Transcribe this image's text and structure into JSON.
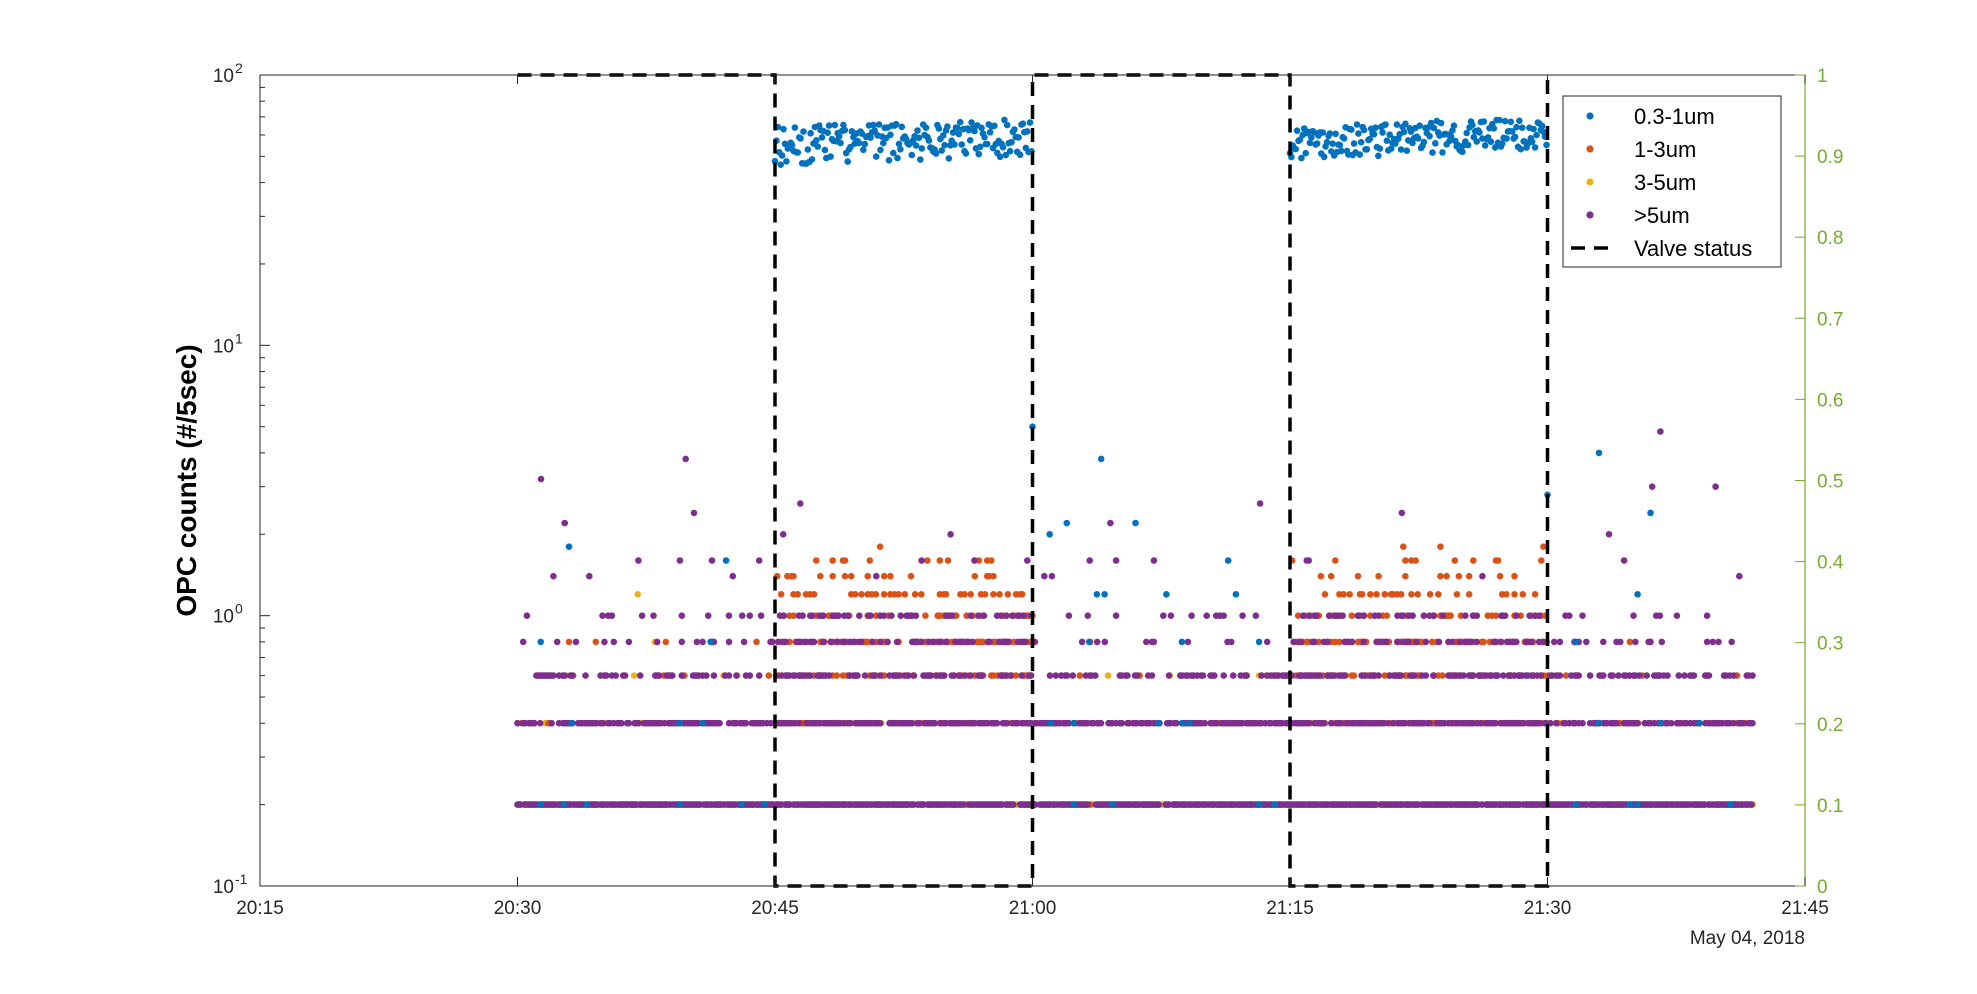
{
  "chart_data": {
    "type": "scatter",
    "title": "",
    "xlabel": "",
    "ylabel": "OPC counts (#/5sec)",
    "x_axis": {
      "type": "time",
      "range": [
        "20:15",
        "21:45"
      ],
      "ticks": [
        "20:15",
        "20:30",
        "20:45",
        "21:00",
        "21:15",
        "21:30",
        "21:45"
      ],
      "date_label": "May 04, 2018"
    },
    "y_axis_left": {
      "scale": "log",
      "range": [
        0.1,
        100
      ],
      "ticks": [
        {
          "value": 0.1,
          "base": "10",
          "exp": "-1"
        },
        {
          "value": 1,
          "base": "10",
          "exp": "0"
        },
        {
          "value": 10,
          "base": "10",
          "exp": "1"
        },
        {
          "value": 100,
          "base": "10",
          "exp": "2"
        }
      ]
    },
    "y_axis_right": {
      "scale": "linear",
      "range": [
        0,
        1
      ],
      "ticks": [
        "0",
        "0.1",
        "0.2",
        "0.3",
        "0.4",
        "0.5",
        "0.6",
        "0.7",
        "0.8",
        "0.9",
        "1"
      ],
      "color": "#77AC30"
    },
    "grid": false,
    "legend_position": "top-right",
    "series": [
      {
        "name": "0.3-1um",
        "marker": "dot",
        "color": "#0072BD",
        "high_count_windows": [
          {
            "start": "20:45",
            "end": "21:00",
            "approx_range": [
              45,
              70
            ]
          },
          {
            "start": "21:15",
            "end": "21:30",
            "approx_range": [
              48,
              70
            ]
          }
        ],
        "sparse_values": [
          0.2,
          0.4,
          0.8,
          1.0,
          1.2,
          1.4,
          1.6,
          1.8,
          2.2,
          2.8,
          3.8,
          4.0,
          5.0
        ],
        "notable_points": [
          {
            "x": "21:00",
            "y": 5.0
          },
          {
            "x": "21:04",
            "y": 3.8
          },
          {
            "x": "21:01",
            "y": 2.0
          },
          {
            "x": "21:02",
            "y": 2.2
          },
          {
            "x": "21:06",
            "y": 2.2
          },
          {
            "x": "21:30",
            "y": 2.8
          },
          {
            "x": "21:33",
            "y": 4.0
          },
          {
            "x": "21:36",
            "y": 2.4
          },
          {
            "x": "20:33",
            "y": 1.8
          }
        ]
      },
      {
        "name": "1-3um",
        "marker": "dot",
        "color": "#D95319",
        "levels": [
          0.2,
          0.4,
          0.6,
          0.8,
          1.0,
          1.2,
          1.4,
          1.6,
          1.8
        ],
        "dense_windows": [
          {
            "start": "20:45",
            "end": "21:00"
          },
          {
            "start": "21:15",
            "end": "21:30"
          }
        ]
      },
      {
        "name": "3-5um",
        "marker": "dot",
        "color": "#EDB120",
        "levels": [
          0.2,
          0.4,
          0.6,
          0.8,
          1.2
        ]
      },
      {
        "name": ">5um",
        "marker": "dot",
        "color": "#7E2F8E",
        "levels": [
          0.2,
          0.4,
          0.6,
          0.8,
          1.0,
          1.4,
          1.6
        ],
        "notable_points": [
          {
            "x": "20:31",
            "y": 3.2
          },
          {
            "x": "20:32",
            "y": 2.2
          },
          {
            "x": "20:39",
            "y": 3.8
          },
          {
            "x": "20:40",
            "y": 2.4
          },
          {
            "x": "20:46",
            "y": 2.6
          },
          {
            "x": "20:45",
            "y": 2.0
          },
          {
            "x": "20:55",
            "y": 2.0
          },
          {
            "x": "21:04",
            "y": 2.2
          },
          {
            "x": "21:13",
            "y": 2.6
          },
          {
            "x": "21:21",
            "y": 2.4
          },
          {
            "x": "21:33",
            "y": 2.0
          },
          {
            "x": "21:36",
            "y": 4.8
          },
          {
            "x": "21:36",
            "y": 3.0
          },
          {
            "x": "21:39",
            "y": 3.0
          }
        ]
      },
      {
        "name": "Valve status",
        "type": "step-line",
        "style": "dashed",
        "color": "#000000",
        "axis": "right",
        "x": [
          "20:30",
          "20:45",
          "20:45",
          "21:00",
          "21:00",
          "21:15",
          "21:15",
          "21:30",
          "21:30"
        ],
        "y": [
          1,
          1,
          0,
          0,
          1,
          1,
          0,
          0,
          1
        ]
      }
    ],
    "data_range": {
      "start": "20:30",
      "end": "21:42"
    }
  }
}
